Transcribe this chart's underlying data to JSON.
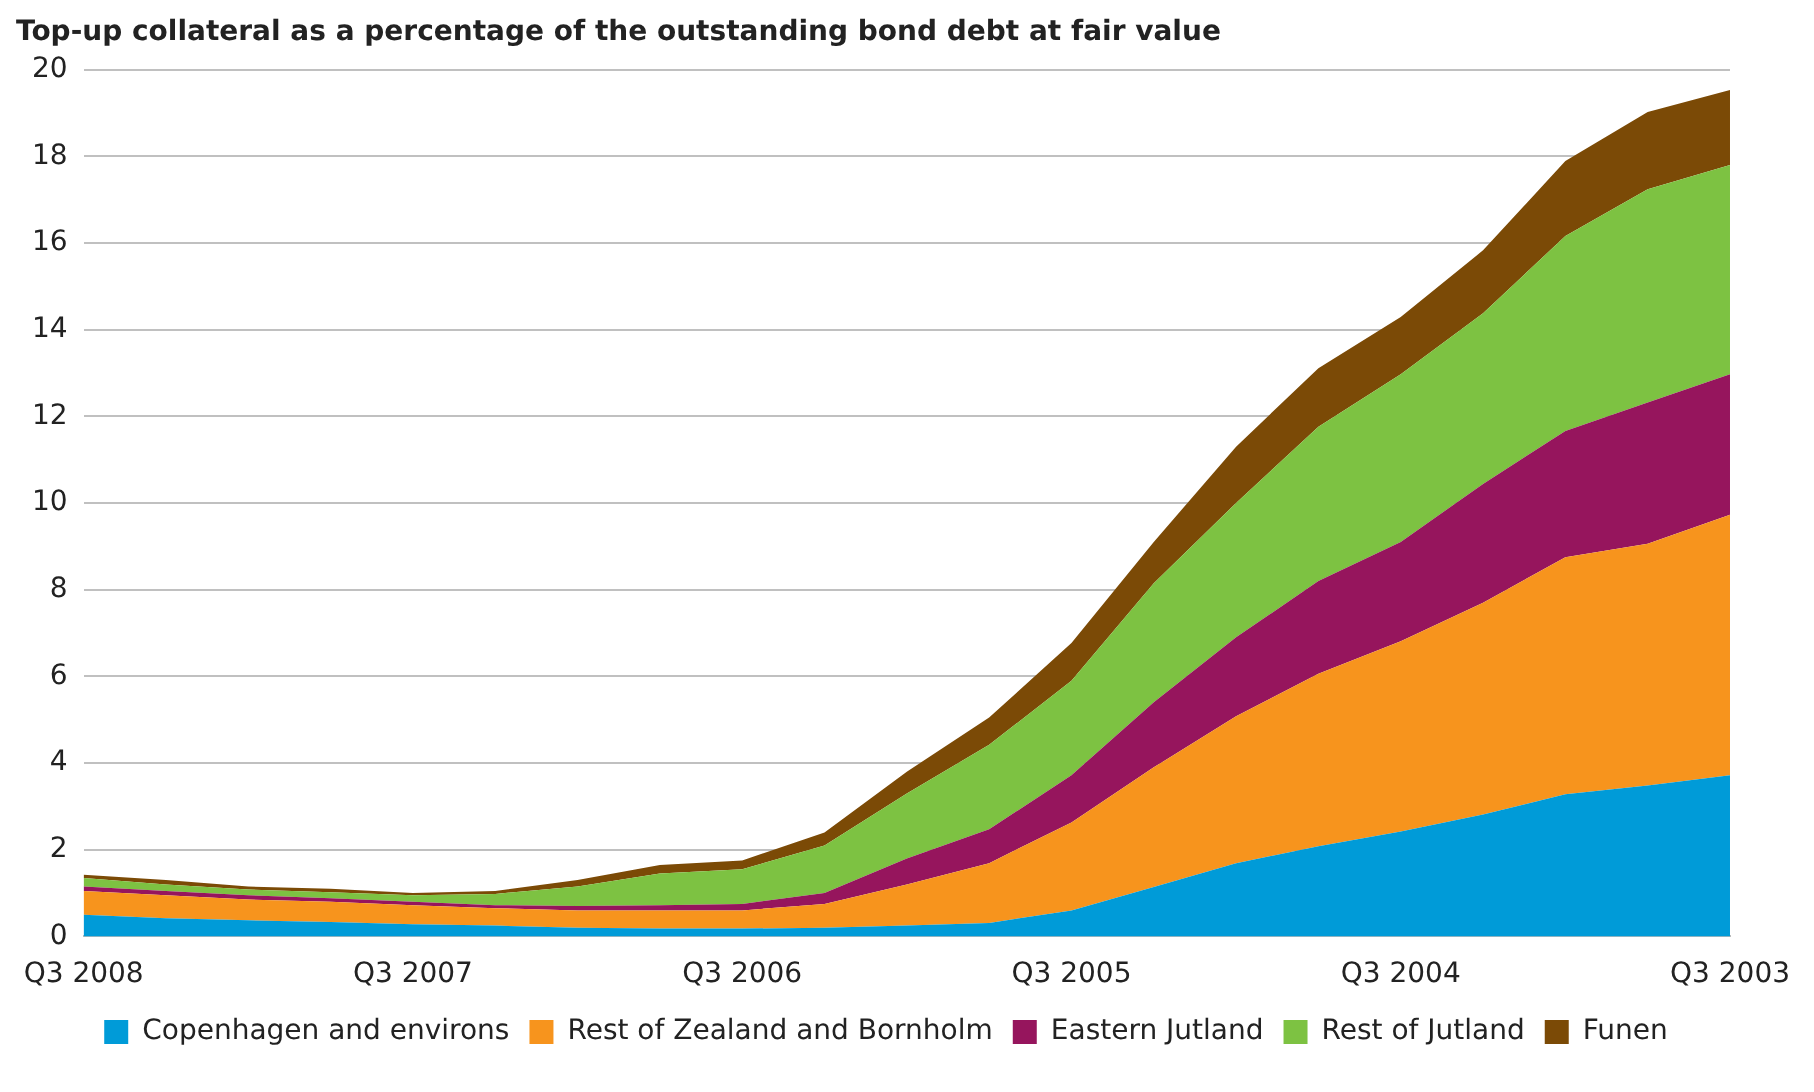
{
  "chart_data": {
    "type": "area",
    "stacked": true,
    "title": "Top-up collateral as a percentage of the outstanding bond debt at fair value",
    "categories": [
      "Q3 2008",
      null,
      null,
      null,
      "Q3 2007",
      null,
      null,
      null,
      "Q3 2006",
      null,
      null,
      null,
      "Q3 2005",
      null,
      null,
      null,
      "Q3 2004",
      null,
      null,
      null,
      "Q3 2003"
    ],
    "series": [
      {
        "name": "Copenhagen and environs",
        "color": "#009bd8",
        "values": [
          0.5,
          0.42,
          0.37,
          0.33,
          0.28,
          0.25,
          0.2,
          0.18,
          0.18,
          0.2,
          0.25,
          0.31,
          0.6,
          1.14,
          1.69,
          2.08,
          2.42,
          2.81,
          3.28,
          3.48,
          3.72
        ]
      },
      {
        "name": "Rest of Zealand and Bornholm",
        "color": "#f7941d",
        "values": [
          0.55,
          0.53,
          0.48,
          0.47,
          0.44,
          0.4,
          0.4,
          0.42,
          0.42,
          0.55,
          0.95,
          1.38,
          2.03,
          2.76,
          3.39,
          3.98,
          4.39,
          4.89,
          5.47,
          5.58,
          6.01
        ]
      },
      {
        "name": "Eastern Jutland",
        "color": "#96155d",
        "values": [
          0.1,
          0.1,
          0.1,
          0.08,
          0.08,
          0.07,
          0.1,
          0.12,
          0.15,
          0.25,
          0.6,
          0.78,
          1.09,
          1.5,
          1.82,
          2.14,
          2.29,
          2.74,
          2.91,
          3.26,
          3.24
        ]
      },
      {
        "name": "Rest of Jutland",
        "color": "#7dc242",
        "values": [
          0.2,
          0.15,
          0.13,
          0.14,
          0.15,
          0.26,
          0.45,
          0.73,
          0.8,
          1.1,
          1.5,
          1.95,
          2.18,
          2.75,
          3.1,
          3.56,
          3.87,
          3.94,
          4.5,
          4.92,
          4.83
        ]
      },
      {
        "name": "Funen",
        "color": "#7b4a06",
        "values": [
          0.07,
          0.1,
          0.07,
          0.08,
          0.05,
          0.07,
          0.15,
          0.2,
          0.2,
          0.3,
          0.5,
          0.63,
          0.87,
          0.95,
          1.3,
          1.35,
          1.32,
          1.45,
          1.73,
          1.78,
          1.73
        ]
      }
    ],
    "ylim": [
      0,
      20
    ],
    "yticks": [
      0,
      2,
      4,
      6,
      8,
      10,
      12,
      14,
      16,
      18,
      20
    ],
    "grid": "y",
    "legend": "bottom"
  }
}
